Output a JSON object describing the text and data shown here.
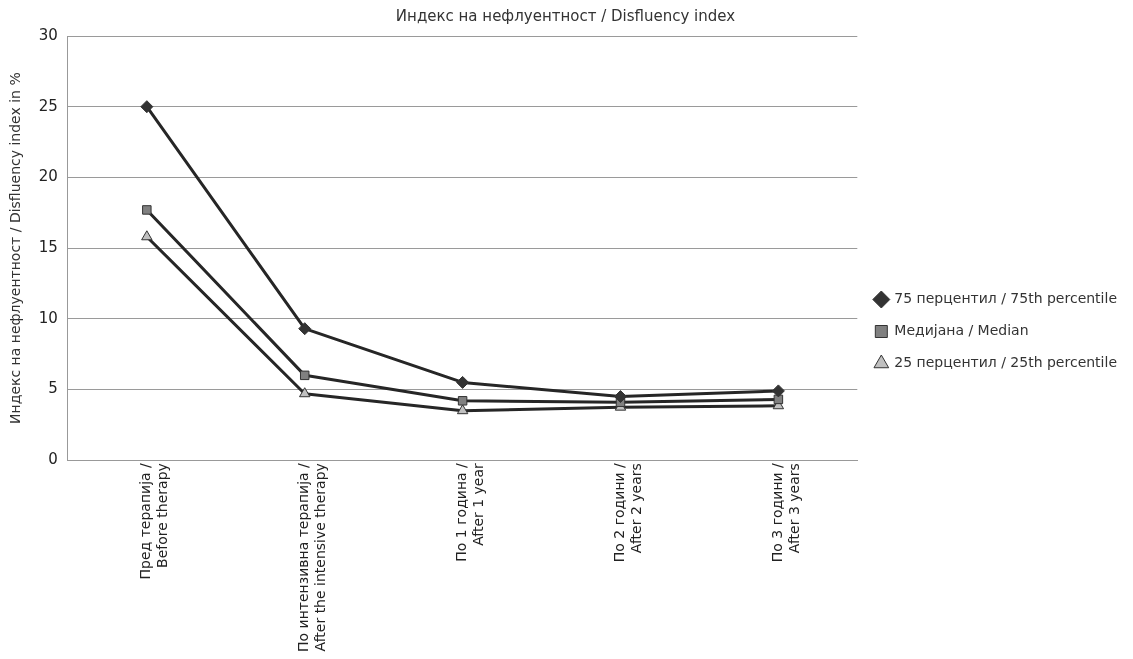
{
  "chart_data": {
    "type": "line",
    "title": "Индекс на нефлуентност / Disfluency index",
    "ylabel": "Индекс на нефлуентност / Disfluency index in %",
    "categories": [
      "Пред терапија /\nBefore therapy",
      "По интензивна терапија /\nAfter the intensive therapy",
      "По 1 година /\nAfter 1 year",
      "По 2 години /\nAfter 2 years",
      "По 3 години /\nAfter 3 years"
    ],
    "series": [
      {
        "name": "75 перцентил / 75th percentile",
        "color": "#333333",
        "marker": "diamond",
        "values": [
          25,
          9.3,
          5.5,
          4.5,
          4.9
        ]
      },
      {
        "name": "Медијана / Median",
        "color": "#808080",
        "marker": "square",
        "values": [
          17.7,
          6.0,
          4.2,
          4.1,
          4.3
        ]
      },
      {
        "name": "25 перцентил / 25th percentile",
        "color": "#c0c0c0",
        "marker": "triangle",
        "values": [
          15.8,
          4.7,
          3.5,
          3.75,
          3.85
        ]
      }
    ],
    "ylim": [
      0,
      30
    ],
    "yticks": [
      0,
      5,
      10,
      15,
      20,
      25,
      30
    ],
    "grid": "y",
    "legend": "right"
  }
}
